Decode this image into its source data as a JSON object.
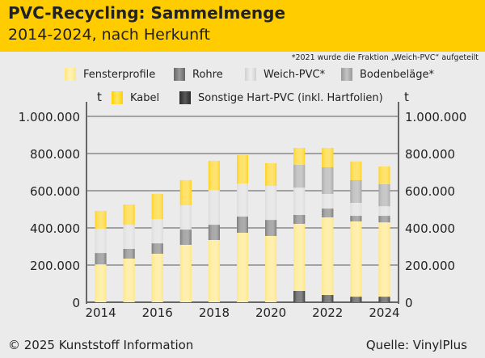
{
  "header": {
    "title": "PVC-Recycling: Sammelmenge",
    "subtitle": "2014-2024, nach Herkunft"
  },
  "note": "*2021 wurde die Fraktion „Weich-PVC“ aufgeteilt",
  "unit_left": "t",
  "unit_right": "t",
  "footer": {
    "copyright": "© 2025 Kunststoff Information",
    "source": "Quelle: VinylPlus"
  },
  "colors": {
    "header": "#ffcc00",
    "background": "#ebebeb"
  },
  "chart_data": {
    "type": "bar",
    "stacked": true,
    "title": "PVC-Recycling: Sammelmenge",
    "subtitle": "2014-2024, nach Herkunft",
    "ylabel": "t",
    "ylim": [
      0,
      1000000
    ],
    "yticks": [
      0,
      200000,
      400000,
      600000,
      800000,
      1000000
    ],
    "ytick_labels": [
      "0",
      "200.000",
      "400.000",
      "600.000",
      "800.000",
      "1.000.000"
    ],
    "categories": [
      "2014",
      "2015",
      "2016",
      "2017",
      "2018",
      "2019",
      "2020",
      "2021",
      "2022",
      "2023",
      "2024"
    ],
    "xtick_labels": [
      "2014",
      "2016",
      "2018",
      "2020",
      "2022",
      "2024"
    ],
    "grid": true,
    "legend_placement": "top",
    "series": [
      {
        "name": "Sonstige Hart-PVC (inkl. Hartfolien)",
        "color": "#3a3a3a",
        "values": [
          0,
          0,
          0,
          0,
          0,
          0,
          0,
          61000,
          39000,
          30000,
          30000
        ]
      },
      {
        "name": "Fensterprofile",
        "color": "#ffe680",
        "values": [
          204000,
          235000,
          261000,
          309000,
          335000,
          374000,
          357000,
          361000,
          418000,
          405000,
          400000
        ]
      },
      {
        "name": "Rohre",
        "color": "#7a7a7a",
        "values": [
          61000,
          52000,
          56000,
          82000,
          82000,
          87000,
          86000,
          48000,
          47000,
          30000,
          35000
        ]
      },
      {
        "name": "Weich-PVC*",
        "color": "#dcdcdc",
        "values": [
          131000,
          130000,
          131000,
          131000,
          187000,
          178000,
          183000,
          147000,
          79000,
          70000,
          52000
        ]
      },
      {
        "name": "Bodenbeläge*",
        "color": "#a8a8a8",
        "values": [
          0,
          0,
          0,
          0,
          0,
          0,
          0,
          122000,
          143000,
          122000,
          118000
        ]
      },
      {
        "name": "Kabel",
        "color": "#ffd21a",
        "values": [
          95000,
          109000,
          135000,
          135000,
          157000,
          152000,
          122000,
          91000,
          104000,
          100000,
          95000
        ]
      }
    ]
  }
}
